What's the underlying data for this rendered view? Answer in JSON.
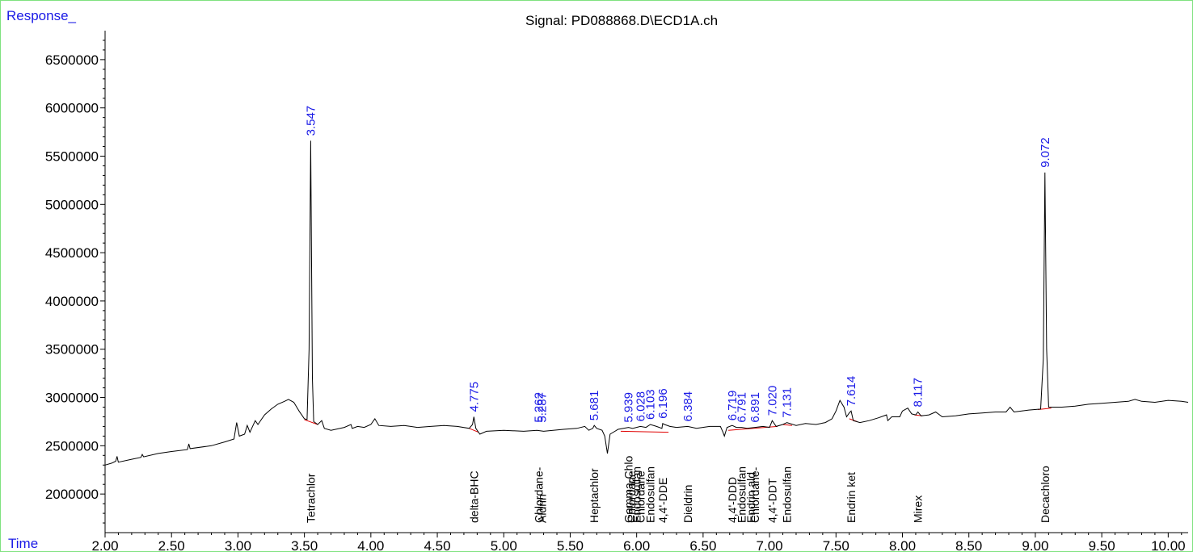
{
  "chart_data": {
    "type": "line",
    "title": "Signal: PD088868.D\\ECD1A.ch",
    "ylabel": "Response_",
    "xlabel": "Time",
    "xlim": [
      2.0,
      10.15
    ],
    "ylim": [
      1600000,
      6800000
    ],
    "x_ticks": [
      "2.00",
      "2.50",
      "3.00",
      "3.50",
      "4.00",
      "4.50",
      "5.00",
      "5.50",
      "6.00",
      "6.50",
      "7.00",
      "7.50",
      "8.00",
      "8.50",
      "9.00",
      "9.50",
      "10.00"
    ],
    "y_ticks": [
      "2000000",
      "2500000",
      "3000000",
      "3500000",
      "4000000",
      "4500000",
      "5000000",
      "5500000",
      "6000000",
      "6500000"
    ],
    "colors": {
      "trace": "#000000",
      "baseline": "#e00000",
      "peak_label": "#1a1ae6",
      "axis_label": "#1a1ae6",
      "frame": "#7fe27f"
    },
    "series": [
      {
        "points": [
          [
            2.0,
            2300000
          ],
          [
            2.05,
            2320000
          ],
          [
            2.08,
            2340000
          ],
          [
            2.09,
            2390000
          ],
          [
            2.1,
            2330000
          ],
          [
            2.2,
            2360000
          ],
          [
            2.27,
            2380000
          ],
          [
            2.28,
            2410000
          ],
          [
            2.29,
            2385000
          ],
          [
            2.4,
            2420000
          ],
          [
            2.5,
            2440000
          ],
          [
            2.62,
            2460000
          ],
          [
            2.63,
            2520000
          ],
          [
            2.64,
            2470000
          ],
          [
            2.8,
            2500000
          ],
          [
            2.9,
            2540000
          ],
          [
            2.97,
            2570000
          ],
          [
            2.99,
            2740000
          ],
          [
            3.01,
            2600000
          ],
          [
            3.05,
            2620000
          ],
          [
            3.07,
            2710000
          ],
          [
            3.09,
            2640000
          ],
          [
            3.13,
            2760000
          ],
          [
            3.15,
            2720000
          ],
          [
            3.2,
            2820000
          ],
          [
            3.25,
            2880000
          ],
          [
            3.3,
            2930000
          ],
          [
            3.35,
            2960000
          ],
          [
            3.38,
            2980000
          ],
          [
            3.42,
            2950000
          ],
          [
            3.46,
            2860000
          ],
          [
            3.5,
            2780000
          ],
          [
            3.52,
            2770000
          ],
          [
            3.535,
            3500000
          ],
          [
            3.547,
            5660000
          ],
          [
            3.56,
            3200000
          ],
          [
            3.57,
            2750000
          ],
          [
            3.6,
            2720000
          ],
          [
            3.63,
            2760000
          ],
          [
            3.65,
            2680000
          ],
          [
            3.7,
            2660000
          ],
          [
            3.8,
            2690000
          ],
          [
            3.85,
            2720000
          ],
          [
            3.86,
            2680000
          ],
          [
            3.9,
            2700000
          ],
          [
            3.95,
            2690000
          ],
          [
            4.0,
            2720000
          ],
          [
            4.03,
            2780000
          ],
          [
            4.06,
            2710000
          ],
          [
            4.15,
            2700000
          ],
          [
            4.25,
            2710000
          ],
          [
            4.35,
            2690000
          ],
          [
            4.45,
            2700000
          ],
          [
            4.55,
            2710000
          ],
          [
            4.65,
            2700000
          ],
          [
            4.74,
            2680000
          ],
          [
            4.765,
            2720000
          ],
          [
            4.775,
            2800000
          ],
          [
            4.79,
            2680000
          ],
          [
            4.82,
            2620000
          ],
          [
            4.87,
            2650000
          ],
          [
            5.0,
            2660000
          ],
          [
            5.15,
            2650000
          ],
          [
            5.25,
            2660000
          ],
          [
            5.3,
            2650000
          ],
          [
            5.45,
            2670000
          ],
          [
            5.55,
            2680000
          ],
          [
            5.61,
            2700000
          ],
          [
            5.64,
            2660000
          ],
          [
            5.67,
            2680000
          ],
          [
            5.681,
            2710000
          ],
          [
            5.7,
            2680000
          ],
          [
            5.74,
            2660000
          ],
          [
            5.76,
            2600000
          ],
          [
            5.78,
            2420000
          ],
          [
            5.8,
            2620000
          ],
          [
            5.86,
            2670000
          ],
          [
            5.939,
            2690000
          ],
          [
            5.97,
            2680000
          ],
          [
            6.028,
            2700000
          ],
          [
            6.07,
            2690000
          ],
          [
            6.103,
            2720000
          ],
          [
            6.15,
            2700000
          ],
          [
            6.19,
            2680000
          ],
          [
            6.196,
            2730000
          ],
          [
            6.21,
            2720000
          ],
          [
            6.25,
            2700000
          ],
          [
            6.3,
            2690000
          ],
          [
            6.384,
            2700000
          ],
          [
            6.45,
            2680000
          ],
          [
            6.55,
            2700000
          ],
          [
            6.63,
            2700000
          ],
          [
            6.65,
            2640000
          ],
          [
            6.66,
            2600000
          ],
          [
            6.68,
            2690000
          ],
          [
            6.719,
            2710000
          ],
          [
            6.75,
            2690000
          ],
          [
            6.791,
            2690000
          ],
          [
            6.83,
            2680000
          ],
          [
            6.891,
            2690000
          ],
          [
            6.95,
            2700000
          ],
          [
            7.0,
            2690000
          ],
          [
            7.02,
            2760000
          ],
          [
            7.05,
            2700000
          ],
          [
            7.1,
            2720000
          ],
          [
            7.131,
            2740000
          ],
          [
            7.2,
            2710000
          ],
          [
            7.27,
            2730000
          ],
          [
            7.35,
            2720000
          ],
          [
            7.42,
            2740000
          ],
          [
            7.47,
            2780000
          ],
          [
            7.5,
            2860000
          ],
          [
            7.53,
            2970000
          ],
          [
            7.56,
            2900000
          ],
          [
            7.58,
            2800000
          ],
          [
            7.6,
            2840000
          ],
          [
            7.614,
            2860000
          ],
          [
            7.63,
            2760000
          ],
          [
            7.68,
            2740000
          ],
          [
            7.75,
            2760000
          ],
          [
            7.82,
            2790000
          ],
          [
            7.88,
            2820000
          ],
          [
            7.89,
            2760000
          ],
          [
            7.92,
            2800000
          ],
          [
            7.98,
            2800000
          ],
          [
            8.0,
            2860000
          ],
          [
            8.04,
            2890000
          ],
          [
            8.07,
            2830000
          ],
          [
            8.1,
            2820000
          ],
          [
            8.117,
            2850000
          ],
          [
            8.14,
            2810000
          ],
          [
            8.2,
            2820000
          ],
          [
            8.25,
            2850000
          ],
          [
            8.3,
            2800000
          ],
          [
            8.4,
            2810000
          ],
          [
            8.5,
            2830000
          ],
          [
            8.6,
            2840000
          ],
          [
            8.7,
            2850000
          ],
          [
            8.78,
            2850000
          ],
          [
            8.81,
            2900000
          ],
          [
            8.84,
            2850000
          ],
          [
            8.95,
            2870000
          ],
          [
            9.04,
            2880000
          ],
          [
            9.06,
            3400000
          ],
          [
            9.072,
            5330000
          ],
          [
            9.085,
            3500000
          ],
          [
            9.1,
            2900000
          ],
          [
            9.2,
            2900000
          ],
          [
            9.3,
            2910000
          ],
          [
            9.4,
            2930000
          ],
          [
            9.5,
            2940000
          ],
          [
            9.6,
            2950000
          ],
          [
            9.7,
            2960000
          ],
          [
            9.75,
            2980000
          ],
          [
            9.8,
            2960000
          ],
          [
            9.9,
            2950000
          ],
          [
            10.0,
            2970000
          ],
          [
            10.1,
            2960000
          ],
          [
            10.15,
            2950000
          ]
        ]
      }
    ],
    "baselines": [
      [
        [
          3.5,
          2770000
        ],
        [
          3.6,
          2720000
        ]
      ],
      [
        [
          4.74,
          2680000
        ],
        [
          4.81,
          2640000
        ]
      ],
      [
        [
          5.88,
          2650000
        ],
        [
          6.24,
          2640000
        ]
      ],
      [
        [
          6.69,
          2660000
        ],
        [
          7.06,
          2700000
        ]
      ],
      [
        [
          7.1,
          2720000
        ],
        [
          7.17,
          2710000
        ]
      ],
      [
        [
          7.6,
          2780000
        ],
        [
          7.66,
          2750000
        ]
      ],
      [
        [
          8.09,
          2820000
        ],
        [
          8.15,
          2810000
        ]
      ],
      [
        [
          9.02,
          2875000
        ],
        [
          9.12,
          2890000
        ]
      ]
    ],
    "peak_labels": [
      {
        "x": 3.547,
        "y": 5660000,
        "label": "3.547"
      },
      {
        "x": 4.775,
        "y": 2800000,
        "label": "4.775"
      },
      {
        "x": 5.262,
        "y": 2690000,
        "label": "5.262"
      },
      {
        "x": 5.287,
        "y": 2690000,
        "label": "5.287"
      },
      {
        "x": 5.681,
        "y": 2710000,
        "label": "5.681"
      },
      {
        "x": 5.939,
        "y": 2690000,
        "label": "5.939"
      },
      {
        "x": 6.028,
        "y": 2700000,
        "label": "6.028"
      },
      {
        "x": 6.103,
        "y": 2720000,
        "label": "6.103"
      },
      {
        "x": 6.196,
        "y": 2730000,
        "label": "6.196"
      },
      {
        "x": 6.384,
        "y": 2700000,
        "label": "6.384"
      },
      {
        "x": 6.719,
        "y": 2710000,
        "label": "6.719"
      },
      {
        "x": 6.791,
        "y": 2690000,
        "label": "6.791"
      },
      {
        "x": 6.891,
        "y": 2690000,
        "label": "6.891"
      },
      {
        "x": 7.02,
        "y": 2760000,
        "label": "7.020"
      },
      {
        "x": 7.131,
        "y": 2740000,
        "label": "7.131"
      },
      {
        "x": 7.614,
        "y": 2860000,
        "label": "7.614"
      },
      {
        "x": 8.117,
        "y": 2850000,
        "label": "8.117"
      },
      {
        "x": 9.072,
        "y": 5330000,
        "label": "9.072"
      }
    ],
    "compound_labels": [
      {
        "x": 3.547,
        "label": "Tetrachlor"
      },
      {
        "x": 4.775,
        "label": "delta-BHC"
      },
      {
        "x": 5.262,
        "label": "Chlordane-"
      },
      {
        "x": 5.287,
        "label": "Aldrin"
      },
      {
        "x": 5.681,
        "label": "Heptachlor"
      },
      {
        "x": 5.939,
        "label": "Gamma-Chlo"
      },
      {
        "x": 5.96,
        "label": "Chlordane"
      },
      {
        "x": 6.0,
        "label": "Endosulfan"
      },
      {
        "x": 6.028,
        "label": "Chlordane"
      },
      {
        "x": 6.103,
        "label": "Endosulfan"
      },
      {
        "x": 6.196,
        "label": "4,4'-DDE"
      },
      {
        "x": 6.384,
        "label": "Dieldrin"
      },
      {
        "x": 6.719,
        "label": "4,4'-DDD"
      },
      {
        "x": 6.791,
        "label": "Endosulfan"
      },
      {
        "x": 6.86,
        "label": "Endrin ald"
      },
      {
        "x": 6.891,
        "label": "Chlordane-"
      },
      {
        "x": 7.02,
        "label": "4,4'-DDT"
      },
      {
        "x": 7.131,
        "label": "Endosulfan"
      },
      {
        "x": 7.614,
        "label": "Endrin ket"
      },
      {
        "x": 8.117,
        "label": "Mirex"
      },
      {
        "x": 9.072,
        "label": "Decachloro"
      }
    ]
  }
}
